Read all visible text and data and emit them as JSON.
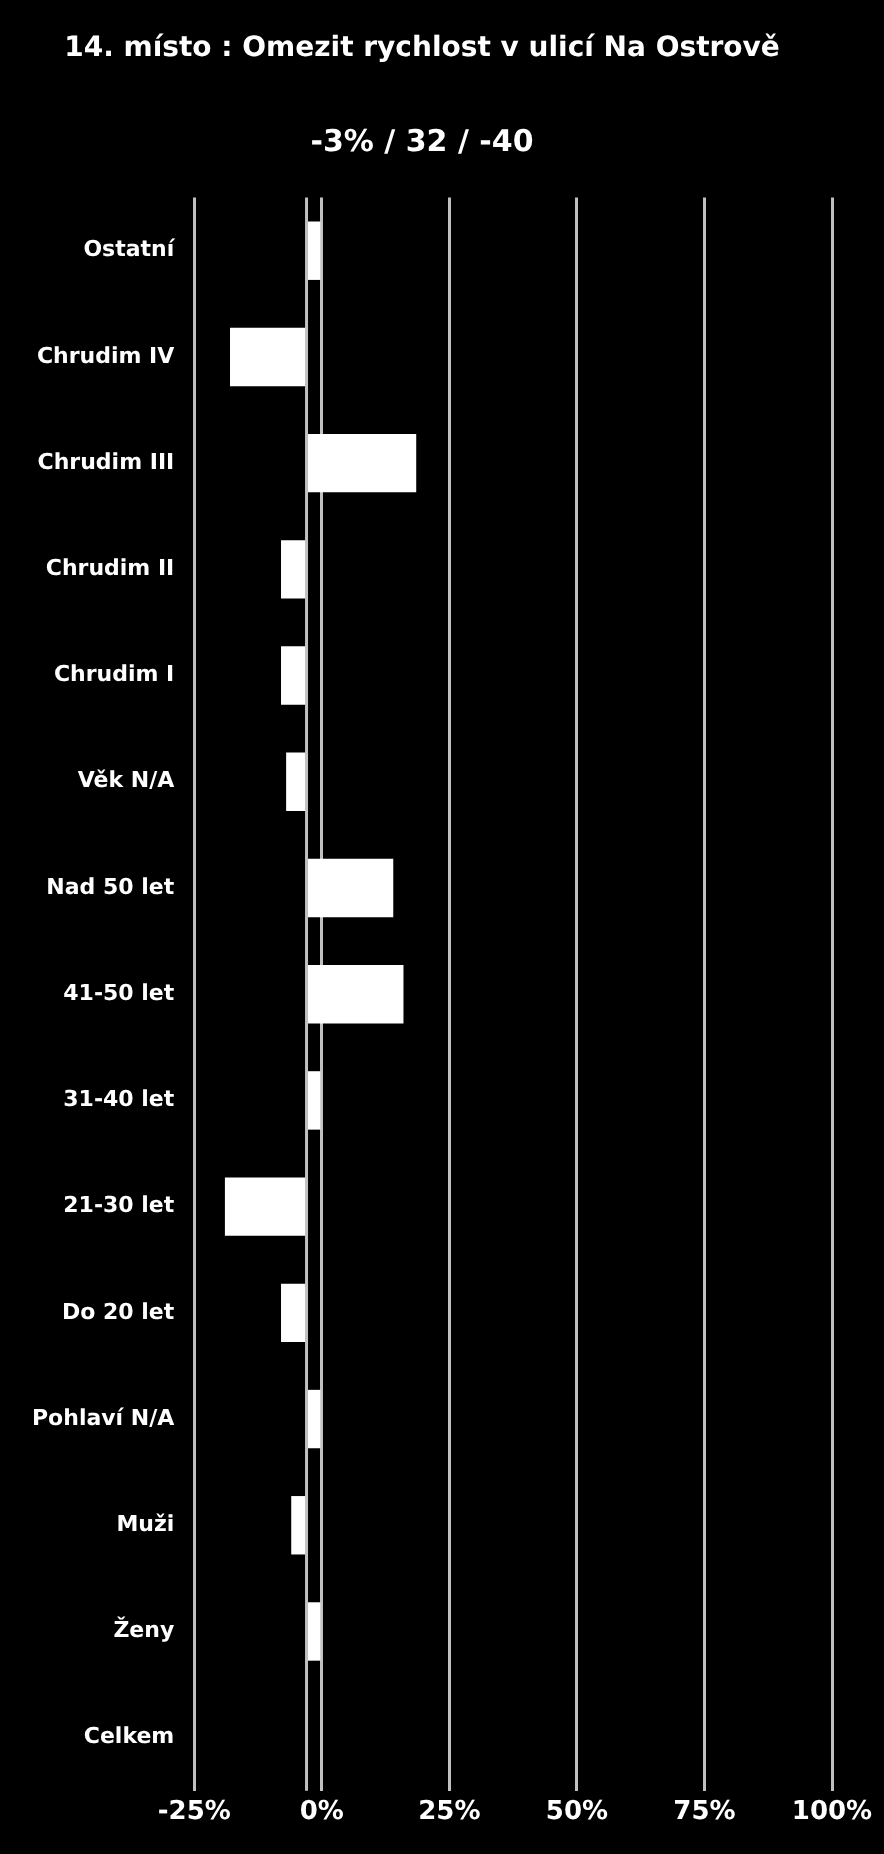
{
  "chart_data": {
    "type": "bar",
    "orientation": "horizontal",
    "title": "14. místo : Omezit rychlost v ulicí Na Ostrově",
    "subtitle": "-3% / 32 / -40",
    "categories": [
      "Ostatní",
      "Chrudim IV",
      "Chrudim III",
      "Chrudim II",
      "Chrudim I",
      "Věk N/A",
      "Nad 50 let",
      "41-50 let",
      "31-40 let",
      "21-30 let",
      "Do 20 let",
      "Pohlaví N/A",
      "Muži",
      "Ženy",
      "Celkem"
    ],
    "values": [
      3,
      -15,
      21.5,
      -5,
      -5,
      -4,
      17,
      19,
      3,
      -16,
      -5,
      3,
      -3,
      3,
      null
    ],
    "base": [
      -3,
      -3,
      -3,
      -3,
      -3,
      -3,
      -3,
      -3,
      -3,
      -3,
      -3,
      -3,
      -3,
      -3,
      null
    ],
    "color": "#ffffff",
    "xlim": [
      -25,
      100
    ],
    "xticks": [
      {
        "value": -25,
        "label": "-25%"
      },
      {
        "value": 0,
        "label": "0%"
      },
      {
        "value": 25,
        "label": "25%"
      },
      {
        "value": 50,
        "label": "50%"
      },
      {
        "value": 75,
        "label": "75%"
      },
      {
        "value": 100,
        "label": "100%"
      }
    ],
    "ref_lines": [
      {
        "axis": "x",
        "value": -3,
        "color": "#c0c0c0"
      }
    ],
    "grid": "x",
    "legend": false
  }
}
